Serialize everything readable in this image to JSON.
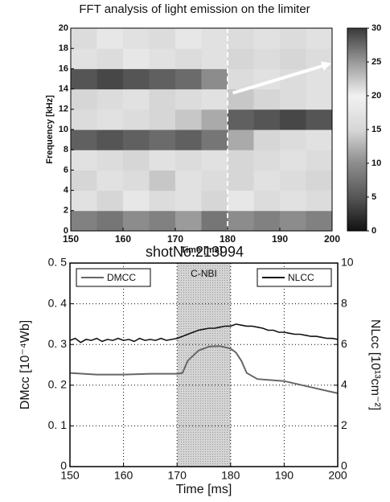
{
  "chart_data": [
    {
      "type": "heatmap",
      "title": "FFT analysis of light emission on the limiter",
      "xlabel": "Time [ms]",
      "ylabel": "Frequency [kHz]",
      "xlim": [
        150,
        200
      ],
      "xticks": [
        150,
        160,
        170,
        180,
        190,
        200
      ],
      "ylim": [
        0,
        20
      ],
      "yticks": [
        0,
        2,
        4,
        6,
        8,
        10,
        12,
        14,
        16,
        18,
        20
      ],
      "zlim": [
        0,
        30
      ],
      "zticks": [
        0,
        5,
        10,
        15,
        20,
        25,
        30
      ],
      "colors": [
        "#111111",
        "#555555",
        "#8c8c8c",
        "#d6d6d6",
        "#f2f2f2",
        "#9a9a9a",
        "#3a3a3a"
      ],
      "z": [
        [
          9,
          8,
          10,
          9,
          11,
          8,
          10,
          9,
          10,
          9
        ],
        [
          17,
          15,
          18,
          16,
          17,
          15,
          18,
          16,
          17,
          16
        ],
        [
          15,
          17,
          16,
          14,
          17,
          16,
          15,
          17,
          16,
          15
        ],
        [
          17,
          16,
          15,
          17,
          16,
          17,
          15,
          16,
          17,
          16
        ],
        [
          6,
          5,
          6,
          7,
          6,
          8,
          12,
          15,
          16,
          17
        ],
        [
          16,
          17,
          16,
          15,
          14,
          12,
          6,
          5,
          4,
          5
        ],
        [
          15,
          16,
          17,
          15,
          16,
          17,
          14,
          15,
          16,
          17
        ],
        [
          5,
          4,
          5,
          6,
          7,
          10,
          16,
          17,
          16,
          17
        ],
        [
          17,
          16,
          18,
          17,
          16,
          17,
          15,
          16,
          15,
          16
        ],
        [
          16,
          18,
          17,
          16,
          18,
          17,
          16,
          17,
          16,
          17
        ]
      ],
      "vline": 180,
      "arrow": {
        "x": [
          181,
          199
        ],
        "y": [
          13.6,
          16.4
        ]
      }
    },
    {
      "type": "line",
      "title": "shotNo.213994",
      "xlabel": "Time [ms]",
      "ylabel": "DMcc [10⁻⁴Wb]",
      "y2label": "NLcc [10¹³cm⁻²]",
      "xlim": [
        150,
        200
      ],
      "xticks": [
        150,
        160,
        170,
        180,
        190,
        200
      ],
      "ylim": [
        0,
        0.5
      ],
      "yticks": [
        {
          "value": 0,
          "label": "0"
        },
        {
          "value": 0.1,
          "label": "0. 1"
        },
        {
          "value": 0.2,
          "label": "0. 2"
        },
        {
          "value": 0.3,
          "label": "0. 3"
        },
        {
          "value": 0.4,
          "label": "0. 4"
        },
        {
          "value": 0.5,
          "label": "0. 5"
        }
      ],
      "y2lim": [
        0,
        10
      ],
      "y2ticks": [
        0,
        2,
        4,
        6,
        8,
        10
      ],
      "grid": true,
      "span": {
        "x": [
          170,
          180
        ],
        "label": "C-NBI"
      },
      "series": [
        {
          "name": "DMCC",
          "color": "#666666",
          "legend": "upper left",
          "x": [
            150,
            155,
            160,
            165,
            170,
            171,
            172,
            174,
            176,
            178,
            180,
            181,
            182,
            183,
            185,
            190,
            195,
            200
          ],
          "values": [
            0.23,
            0.226,
            0.226,
            0.228,
            0.228,
            0.23,
            0.26,
            0.285,
            0.295,
            0.296,
            0.29,
            0.28,
            0.26,
            0.23,
            0.215,
            0.21,
            0.195,
            0.18
          ]
        },
        {
          "name": "NLCC",
          "color": "#111111",
          "axis": "y2",
          "legend": "upper right",
          "x": [
            150,
            151,
            152,
            153,
            154,
            155,
            156,
            157,
            158,
            159,
            160,
            161,
            162,
            163,
            164,
            165,
            166,
            167,
            168,
            169,
            170,
            171,
            172,
            173,
            174,
            175,
            176,
            177,
            178,
            179,
            180,
            181,
            182,
            183,
            184,
            185,
            186,
            187,
            188,
            189,
            190,
            191,
            192,
            193,
            194,
            195,
            196,
            197,
            198,
            199,
            200
          ],
          "values": [
            6.2,
            6.3,
            6.1,
            6.25,
            6.2,
            6.3,
            6.15,
            6.25,
            6.2,
            6.3,
            6.2,
            6.25,
            6.15,
            6.3,
            6.2,
            6.25,
            6.2,
            6.3,
            6.2,
            6.25,
            6.3,
            6.4,
            6.5,
            6.6,
            6.7,
            6.75,
            6.8,
            6.8,
            6.85,
            6.9,
            6.9,
            7.0,
            6.95,
            6.9,
            6.9,
            6.85,
            6.8,
            6.7,
            6.7,
            6.6,
            6.6,
            6.55,
            6.5,
            6.5,
            6.45,
            6.4,
            6.4,
            6.35,
            6.3,
            6.3,
            6.25
          ]
        }
      ]
    }
  ]
}
